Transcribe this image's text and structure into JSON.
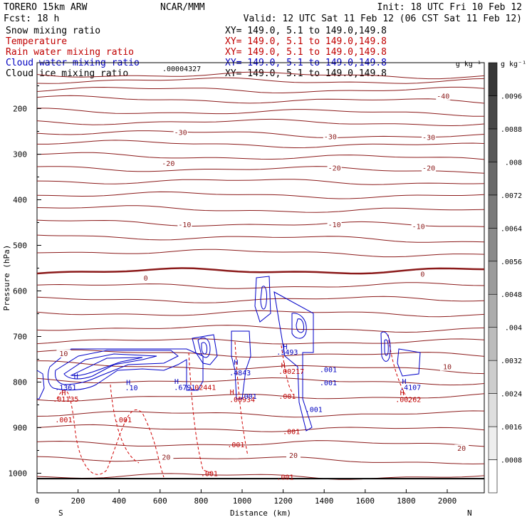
{
  "header": {
    "model": "TORERO  15km ARW",
    "center": "NCAR/MMM",
    "init": "Init: 18 UTC Fri 10 Feb 12",
    "fcst": "Fcst:   18 h",
    "valid": "Valid: 12 UTC Sat 11 Feb 12 (06 CST Sat 11 Feb 12)"
  },
  "legend": [
    {
      "label": "Snow mixing ratio",
      "xy": "",
      "color": "#000000"
    },
    {
      "label": "Temperature",
      "xy": "XY= 149.0,  5.1 to 149.0,149.8",
      "color": "#c00000"
    },
    {
      "label": "Rain water mixing ratio",
      "xy": "XY= 149.0,  5.1 to 149.0,149.8",
      "color": "#c00000"
    },
    {
      "label": "Cloud water mixing ratio",
      "xy": "XY= 149.0,  5.1 to 149.0,149.8",
      "color": "#0000c0"
    },
    {
      "label": "Cloud ice mixing ratio",
      "xy": "XY= 149.0,  5.1 to 149.0,149.8",
      "color": "#000000"
    }
  ],
  "legend_first_xy": "XY= 149.0,  5.1 to 149.0,149.8",
  "snow_max_label": ".00004327",
  "top_right_label": "g kg⁻¹",
  "chart_data": {
    "type": "cross-section contour",
    "xlabel": "Distance (km)",
    "ylabel": "Pressure (hPa)",
    "xlim": [
      0,
      2175
    ],
    "ylim": [
      1050,
      100
    ],
    "x_ticks": [
      0,
      200,
      400,
      600,
      800,
      1000,
      1200,
      1400,
      1600,
      1800,
      2000
    ],
    "y_ticks": [
      200,
      300,
      400,
      500,
      600,
      700,
      800,
      900,
      1000
    ],
    "endpoints": {
      "left": "S",
      "right": "N"
    },
    "colorbar": {
      "unit": "g kg⁻¹",
      "levels": [
        ".0008",
        ".0016",
        ".0024",
        ".0032",
        ".004",
        ".0048",
        ".0056",
        ".0064",
        ".0072",
        ".008",
        ".0088",
        ".0096"
      ]
    },
    "temperature_contour_labels": [
      {
        "text": "-40",
        "x": 1980,
        "p": 175
      },
      {
        "text": "-30",
        "x": 700,
        "p": 255
      },
      {
        "text": "-30",
        "x": 1430,
        "p": 264
      },
      {
        "text": "-30",
        "x": 1910,
        "p": 266
      },
      {
        "text": "-20",
        "x": 640,
        "p": 323
      },
      {
        "text": "-20",
        "x": 1450,
        "p": 333
      },
      {
        "text": "-20",
        "x": 1910,
        "p": 333
      },
      {
        "text": "-10",
        "x": 720,
        "p": 457
      },
      {
        "text": "-10",
        "x": 1450,
        "p": 457
      },
      {
        "text": "-10",
        "x": 1860,
        "p": 461
      },
      {
        "text": "0",
        "x": 530,
        "p": 574
      },
      {
        "text": "0",
        "x": 1880,
        "p": 566
      },
      {
        "text": "10",
        "x": 130,
        "p": 740
      },
      {
        "text": "10",
        "x": 2000,
        "p": 769
      },
      {
        "text": "20",
        "x": 630,
        "p": 967
      },
      {
        "text": "20",
        "x": 1250,
        "p": 963
      },
      {
        "text": "20",
        "x": 2070,
        "p": 948
      }
    ],
    "maxima_labels": [
      {
        "text": "H",
        "color": "#0000c0",
        "x": 190,
        "p": 792
      },
      {
        "text": ".1361",
        "color": "#0000c0",
        "x": 140,
        "p": 817
      },
      {
        "text": "H",
        "color": "#c00000",
        "x": 130,
        "p": 829
      },
      {
        "text": ".01135",
        "color": "#c00000",
        "x": 140,
        "p": 843
      },
      {
        "text": ".001",
        "color": "#c00000",
        "x": 130,
        "p": 888
      },
      {
        "text": "H",
        "color": "#0000c0",
        "x": 445,
        "p": 806
      },
      {
        "text": ".10",
        "color": "#0000c0",
        "x": 460,
        "p": 818
      },
      {
        "text": ".001",
        "color": "#c00000",
        "x": 420,
        "p": 888
      },
      {
        "text": "H",
        "color": "#0000c0",
        "x": 680,
        "p": 804
      },
      {
        "text": ".6791",
        "color": "#0000c0",
        "x": 720,
        "p": 817
      },
      {
        "text": ".02441",
        "color": "#c00000",
        "x": 810,
        "p": 817
      },
      {
        "text": "H",
        "color": "#0000c0",
        "x": 970,
        "p": 762
      },
      {
        "text": ".4843",
        "color": "#0000c0",
        "x": 990,
        "p": 785
      },
      {
        "text": "H",
        "color": "#c00000",
        "x": 950,
        "p": 827
      },
      {
        "text": ".00934",
        "color": "#c00000",
        "x": 1000,
        "p": 844
      },
      {
        "text": ".001",
        "color": "#0000c0",
        "x": 1030,
        "p": 837
      },
      {
        "text": ".001",
        "color": "#c00000",
        "x": 970,
        "p": 943
      },
      {
        "text": "H",
        "color": "#0000c0",
        "x": 1210,
        "p": 728
      },
      {
        "text": ".3493",
        "color": "#0000c0",
        "x": 1220,
        "p": 740
      },
      {
        "text": "H",
        "color": "#c00000",
        "x": 1200,
        "p": 769
      },
      {
        "text": ".00217",
        "color": "#c00000",
        "x": 1240,
        "p": 782
      },
      {
        "text": ".001",
        "color": "#c00000",
        "x": 1220,
        "p": 837
      },
      {
        "text": ".001",
        "color": "#0000c0",
        "x": 1420,
        "p": 778
      },
      {
        "text": ".001",
        "color": "#0000c0",
        "x": 1420,
        "p": 807
      },
      {
        "text": ".001",
        "color": "#0000c0",
        "x": 1350,
        "p": 866
      },
      {
        "text": ".001",
        "color": "#c00000",
        "x": 1240,
        "p": 914
      },
      {
        "text": ".001",
        "color": "#c00000",
        "x": 1210,
        "p": 1014
      },
      {
        "text": ".001",
        "color": "#c00000",
        "x": 840,
        "p": 1006
      },
      {
        "text": "H",
        "color": "#0000c0",
        "x": 1790,
        "p": 804
      },
      {
        "text": ".4107",
        "color": "#0000c0",
        "x": 1820,
        "p": 817
      },
      {
        "text": "H",
        "color": "#c00000",
        "x": 1780,
        "p": 829
      },
      {
        "text": ".00262",
        "color": "#c00000",
        "x": 1810,
        "p": 844
      }
    ]
  }
}
